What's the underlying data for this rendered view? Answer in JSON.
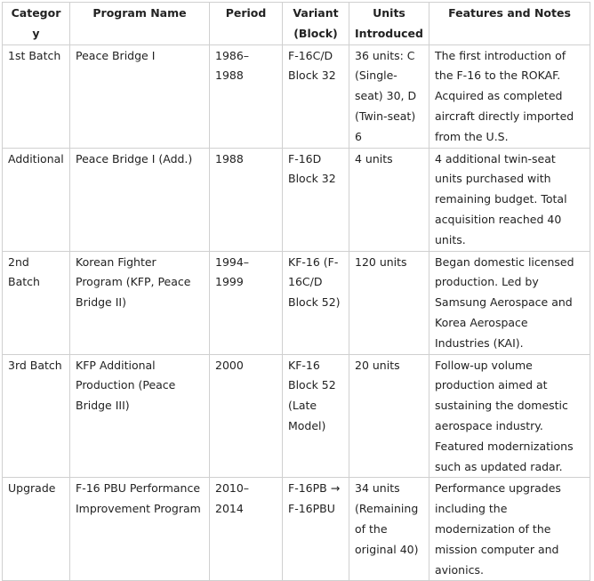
{
  "table": {
    "header": [
      "Category",
      "Program Name",
      "Period",
      "Variant (Block)",
      "Units Introduced",
      "Features and Notes"
    ],
    "rows": [
      [
        "1st Batch",
        "Peace Bridge I",
        "1986–1988",
        "F-16C/D Block 32",
        "36 units: C (Single-seat) 30, D (Twin-seat) 6",
        "The first introduction of the F-16 to the ROKAF. Acquired as completed aircraft directly imported from the U.S."
      ],
      [
        "Additional",
        "Peace Bridge I (Add.)",
        "1988",
        "F-16D Block 32",
        "4 units",
        "4 additional twin-seat units purchased with remaining budget. Total acquisition reached 40 units."
      ],
      [
        "2nd Batch",
        "Korean Fighter Program (KFP, Peace Bridge II)",
        "1994–1999",
        "KF-16 (F-16C/D Block 52)",
        "120 units",
        "Began domestic licensed production. Led by Samsung Aerospace and Korea Aerospace Industries (KAI)."
      ],
      [
        "3rd Batch",
        "KFP Additional Production (Peace Bridge III)",
        "2000",
        "KF-16 Block 52 (Late Model)",
        "20 units",
        "Follow-up volume production aimed at sustaining the domestic aerospace industry. Featured modernizations such as updated radar."
      ],
      [
        "Upgrade",
        "F-16 PBU Performance Improvement Program",
        "2010–2014",
        "F-16PB → F-16PBU",
        "34 units (Remaining of the original 40)",
        "Performance upgrades including the modernization of the mission computer and avionics."
      ]
    ]
  }
}
